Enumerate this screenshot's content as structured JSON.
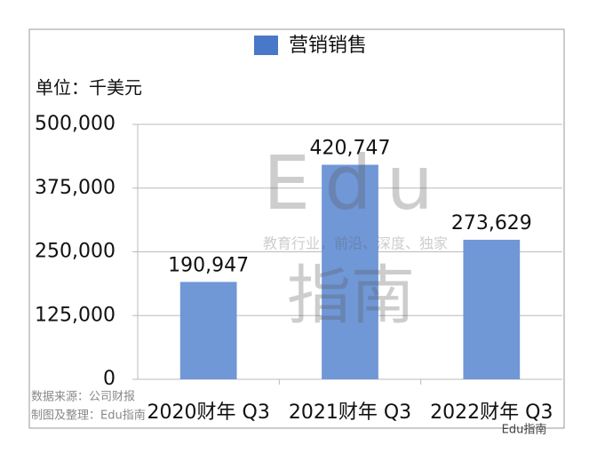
{
  "chart_data": {
    "type": "bar",
    "legend": "营销销售",
    "unit_label": "单位：千美元",
    "categories": [
      "2020财年 Q3",
      "2021财年 Q3",
      "2022财年 Q3"
    ],
    "series": [
      {
        "name": "营销销售",
        "color": "#7097d6",
        "values": [
          190947,
          420747,
          273629
        ],
        "value_labels": [
          "190,947",
          "420,747",
          "273,629"
        ]
      }
    ],
    "ylim": [
      0,
      500000
    ],
    "yticks": [
      0,
      {
        "value": 125000,
        "label": "125,000"
      },
      {
        "value": 250000,
        "label": "250,000"
      },
      {
        "value": 375000,
        "label": "375,000"
      },
      {
        "value": 500000,
        "label": "500,000"
      }
    ],
    "grid": true,
    "notes": [
      "数据来源：公司财报",
      "制图及整理：Edu指南"
    ],
    "watermark": {
      "brand": "Edu",
      "tagline": "教育行业，前沿、深度、独家",
      "brand_cn": "指南"
    },
    "logo": "Edu指南"
  }
}
